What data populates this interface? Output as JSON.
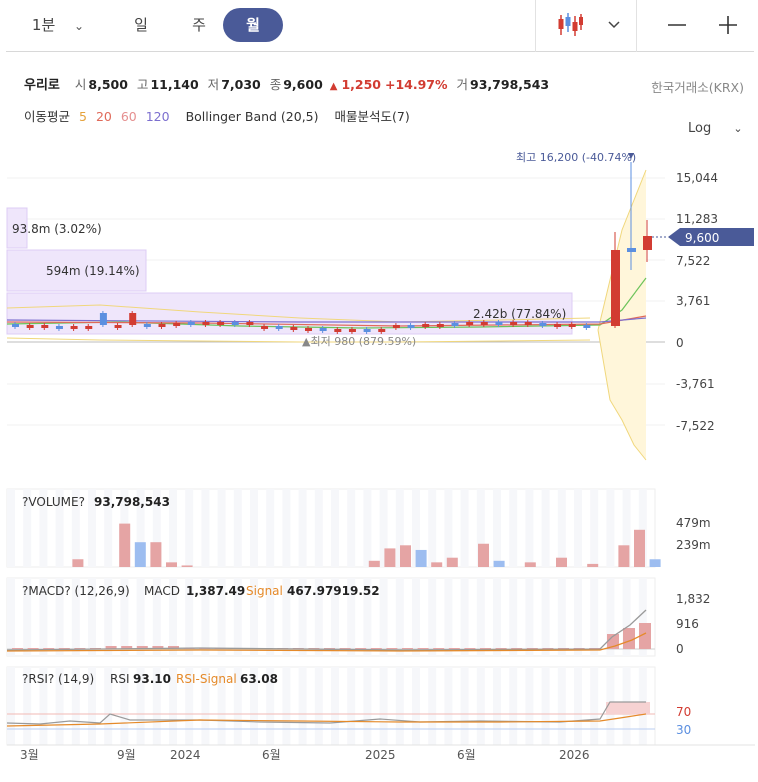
{
  "toolbar": {
    "timeframes": [
      {
        "label": "1분",
        "active": false
      },
      {
        "label": "일",
        "active": false
      },
      {
        "label": "주",
        "active": false
      },
      {
        "label": "월",
        "active": true
      }
    ],
    "icons": [
      "candle-chart-icon",
      "chevron-down-icon",
      "zoom-out-icon",
      "zoom-in-icon"
    ]
  },
  "quote": {
    "name": "우리로",
    "open_label": "시",
    "open": "8,500",
    "high_label": "고",
    "high": "11,140",
    "low_label": "저",
    "low": "7,030",
    "close_label": "종",
    "close": "9,600",
    "change_arrow": "▲",
    "change": "1,250",
    "change_pct": "+14.97%",
    "volume_label": "거",
    "volume": "93,798,543",
    "exchange": "한국거래소(KRX)"
  },
  "indicators": {
    "ma_label": "이동평균",
    "ma_periods": [
      "5",
      "20",
      "60",
      "120"
    ],
    "bollinger": "Bollinger Band (20,5)",
    "volume_profile": "매물분석도(7)"
  },
  "scale_mode": "Log",
  "price_panel": {
    "y_ticks": [
      "15,044",
      "11,283",
      "7,522",
      "3,761",
      "0",
      "-3,761",
      "-7,522"
    ],
    "current_price": "9,600",
    "high_marker": "최고 16,200 (-40.74%)",
    "low_marker": "▲최저 980 (879.59%)",
    "profile_labels": [
      "93.8m (3.02%)",
      "594m (19.14%)",
      "2.42b (77.84%)"
    ]
  },
  "volume_panel": {
    "title": "?VOLUME?",
    "value": "93,798,543",
    "y_ticks": [
      "479m",
      "239m"
    ]
  },
  "macd_panel": {
    "title": "?MACD? (12,26,9)",
    "macd_label": "MACD",
    "macd_value": "1,387.49",
    "signal_label": "Signal",
    "signal_value": "467.97919.52",
    "y_ticks": [
      "1,832",
      "916",
      "0"
    ]
  },
  "rsi_panel": {
    "title": "?RSI? (14,9)",
    "rsi_label": "RSI",
    "rsi_value": "93.10",
    "signal_label": "RSI-Signal",
    "signal_value": "63.08",
    "y_ticks": [
      "70",
      "30"
    ]
  },
  "x_axis_labels": [
    "3월",
    "9월",
    "2024",
    "6월",
    "2025",
    "6월",
    "2026"
  ],
  "colors": {
    "up": "#d23c32",
    "down": "#5b8fe0",
    "accent": "#4a5a98",
    "signal": "#e58a2a",
    "profile": "#e9defa"
  }
}
